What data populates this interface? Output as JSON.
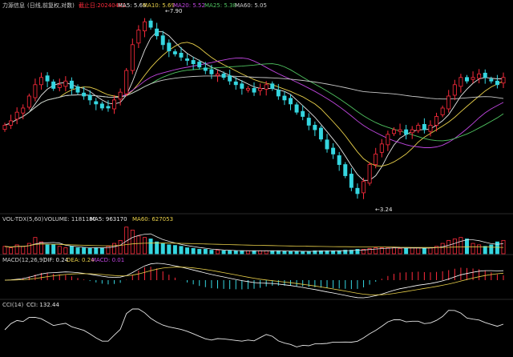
{
  "colors": {
    "background": "#000000",
    "up": "#ff2b3c",
    "down": "#35d6e0",
    "ma5": "#e6e6e6",
    "ma10": "#e9d04a",
    "ma20": "#c046e0",
    "ma25": "#4fc260",
    "ma60": "#c8c8c8",
    "dif": "#ffffff",
    "dea": "#e9d04a",
    "cci": "#e6e6e6",
    "label_gray": "#cfcfcf"
  },
  "header": {
    "name": "力源信息",
    "mode": "(日线,前复权,对数)",
    "date_label": "截止日:20240401",
    "ma5": "MA5: 5.66",
    "ma10": "MA10: 5.69",
    "ma20": "MA20: 5.52",
    "ma25": "MA25: 5.38",
    "ma60": "MA60: 5.05"
  },
  "volume_header": {
    "title": "VOL-TDX(5,60)",
    "volume": "VOLUME: 1181180",
    "ma5": "MA5: 963170",
    "ma60": "MA60: 627053"
  },
  "macd_header": {
    "title": "MACD(12,26,9)",
    "dif": "DIF: 0.24",
    "dea": "DEA: 0.24",
    "macd": "MACD: 0.01"
  },
  "cci_header": {
    "title": "CCI(14)",
    "cci": "CCI: 132.44"
  },
  "annotations": {
    "high": "7.90",
    "low": "3.24"
  },
  "chart_data": [
    {
      "type": "candlestick",
      "title": "力源信息 (日线,前复权,对数)",
      "high_label": 7.9,
      "low_label": 3.24,
      "close_trajectory": [
        4.6,
        4.7,
        4.9,
        5.0,
        5.3,
        5.6,
        5.8,
        5.7,
        5.5,
        5.6,
        5.7,
        5.5,
        5.4,
        5.3,
        5.2,
        5.1,
        5.0,
        5.0,
        5.2,
        5.4,
        6.0,
        6.8,
        7.3,
        7.6,
        7.4,
        7.1,
        6.8,
        6.6,
        6.5,
        6.4,
        6.3,
        6.2,
        6.1,
        6.0,
        5.9,
        5.9,
        5.8,
        5.7,
        5.6,
        5.5,
        5.5,
        5.4,
        5.5,
        5.6,
        5.5,
        5.3,
        5.2,
        5.1,
        4.9,
        4.8,
        4.6,
        4.5,
        4.3,
        4.1,
        4.0,
        3.8,
        3.6,
        3.4,
        3.3,
        3.5,
        3.8,
        4.0,
        4.2,
        4.4,
        4.5,
        4.5,
        4.4,
        4.5,
        4.6,
        4.5,
        4.6,
        4.8,
        5.0,
        5.3,
        5.6,
        5.8,
        5.7,
        5.8,
        5.9,
        5.8,
        5.7,
        5.6,
        5.8
      ],
      "ma_labels": [
        "MA5",
        "MA10",
        "MA20",
        "MA25",
        "MA60"
      ]
    },
    {
      "type": "bar",
      "title": "VOL-TDX(5,60)",
      "volume_last": 1181180,
      "ma5_last": 963170,
      "ma60_last": 627053,
      "relative_levels": [
        0.25,
        0.2,
        0.3,
        0.25,
        0.35,
        0.55,
        0.4,
        0.3,
        0.3,
        0.25,
        0.2,
        0.25,
        0.2,
        0.2,
        0.18,
        0.2,
        0.2,
        0.25,
        0.35,
        0.45,
        0.9,
        0.8,
        0.6,
        0.55,
        0.5,
        0.4,
        0.35,
        0.3,
        0.28,
        0.25,
        0.2,
        0.18,
        0.15,
        0.15,
        0.12,
        0.12,
        0.1,
        0.1,
        0.1,
        0.1,
        0.1,
        0.1,
        0.1,
        0.1,
        0.1,
        0.1,
        0.08,
        0.08,
        0.08,
        0.08,
        0.08,
        0.1,
        0.1,
        0.1,
        0.1,
        0.1,
        0.12,
        0.12,
        0.15,
        0.15,
        0.18,
        0.2,
        0.2,
        0.2,
        0.2,
        0.18,
        0.18,
        0.2,
        0.2,
        0.18,
        0.2,
        0.25,
        0.35,
        0.45,
        0.5,
        0.55,
        0.5,
        0.35,
        0.3,
        0.25,
        0.3,
        0.4,
        0.45
      ]
    },
    {
      "type": "line",
      "title": "MACD(12,26,9)",
      "dif_last": 0.24,
      "dea_last": 0.24,
      "macd_last": 0.01
    },
    {
      "type": "line",
      "title": "CCI(14)",
      "cci_last": 132.44
    }
  ]
}
